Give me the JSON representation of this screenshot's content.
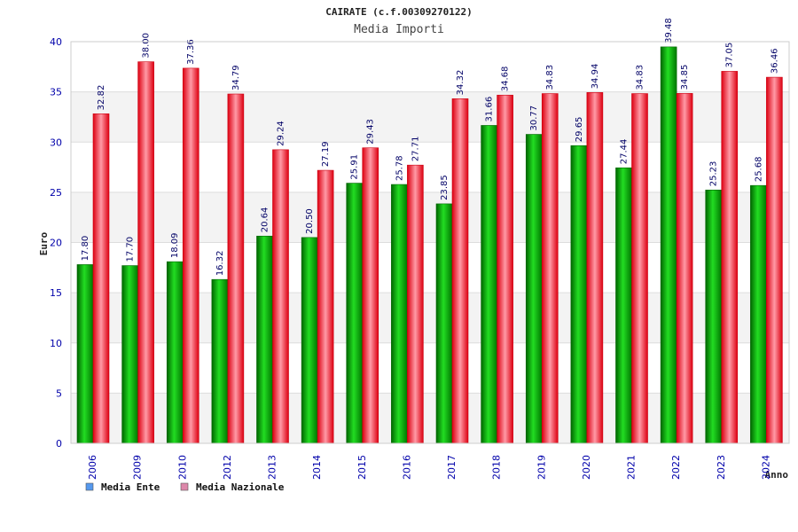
{
  "chart_data": {
    "type": "bar",
    "title": "CAIRATE (c.f.00309270122)",
    "subtitle": "Media Importi",
    "xlabel": "Anno",
    "ylabel": "Euro",
    "ylim": [
      0,
      40
    ],
    "yticks": [
      0,
      5,
      10,
      15,
      20,
      25,
      30,
      35,
      40
    ],
    "grid": true,
    "legend_position": "bottom-left",
    "categories": [
      "2006",
      "2009",
      "2010",
      "2012",
      "2013",
      "2014",
      "2015",
      "2016",
      "2017",
      "2018",
      "2019",
      "2020",
      "2021",
      "2022",
      "2023",
      "2024"
    ],
    "series": [
      {
        "name": "Media Ente",
        "color": "#00aa00",
        "legend_color": "#5599ee",
        "values": [
          17.8,
          17.7,
          18.09,
          16.32,
          20.64,
          20.5,
          25.91,
          25.78,
          23.85,
          31.66,
          30.77,
          29.65,
          27.44,
          39.48,
          25.23,
          25.68
        ],
        "labels": [
          "17.80",
          "17.70",
          "18.09",
          "16.32",
          "20.64",
          "20.50",
          "25.91",
          "25.78",
          "23.85",
          "31.66",
          "30.77",
          "29.65",
          "27.44",
          "39.48",
          "25.23",
          "25.68"
        ]
      },
      {
        "name": "Media Nazionale",
        "color": "#ee1122",
        "legend_color": "#dd88aa",
        "values": [
          32.82,
          38.0,
          37.36,
          34.79,
          29.24,
          27.19,
          29.43,
          27.71,
          34.32,
          34.68,
          34.83,
          34.94,
          34.83,
          34.85,
          37.05,
          36.46
        ],
        "labels": [
          "32.82",
          "38.00",
          "37.36",
          "34.79",
          "29.24",
          "27.19",
          "29.43",
          "27.71",
          "34.32",
          "34.68",
          "34.83",
          "34.94",
          "34.83",
          "34.85",
          "37.05",
          "36.46"
        ]
      }
    ]
  }
}
